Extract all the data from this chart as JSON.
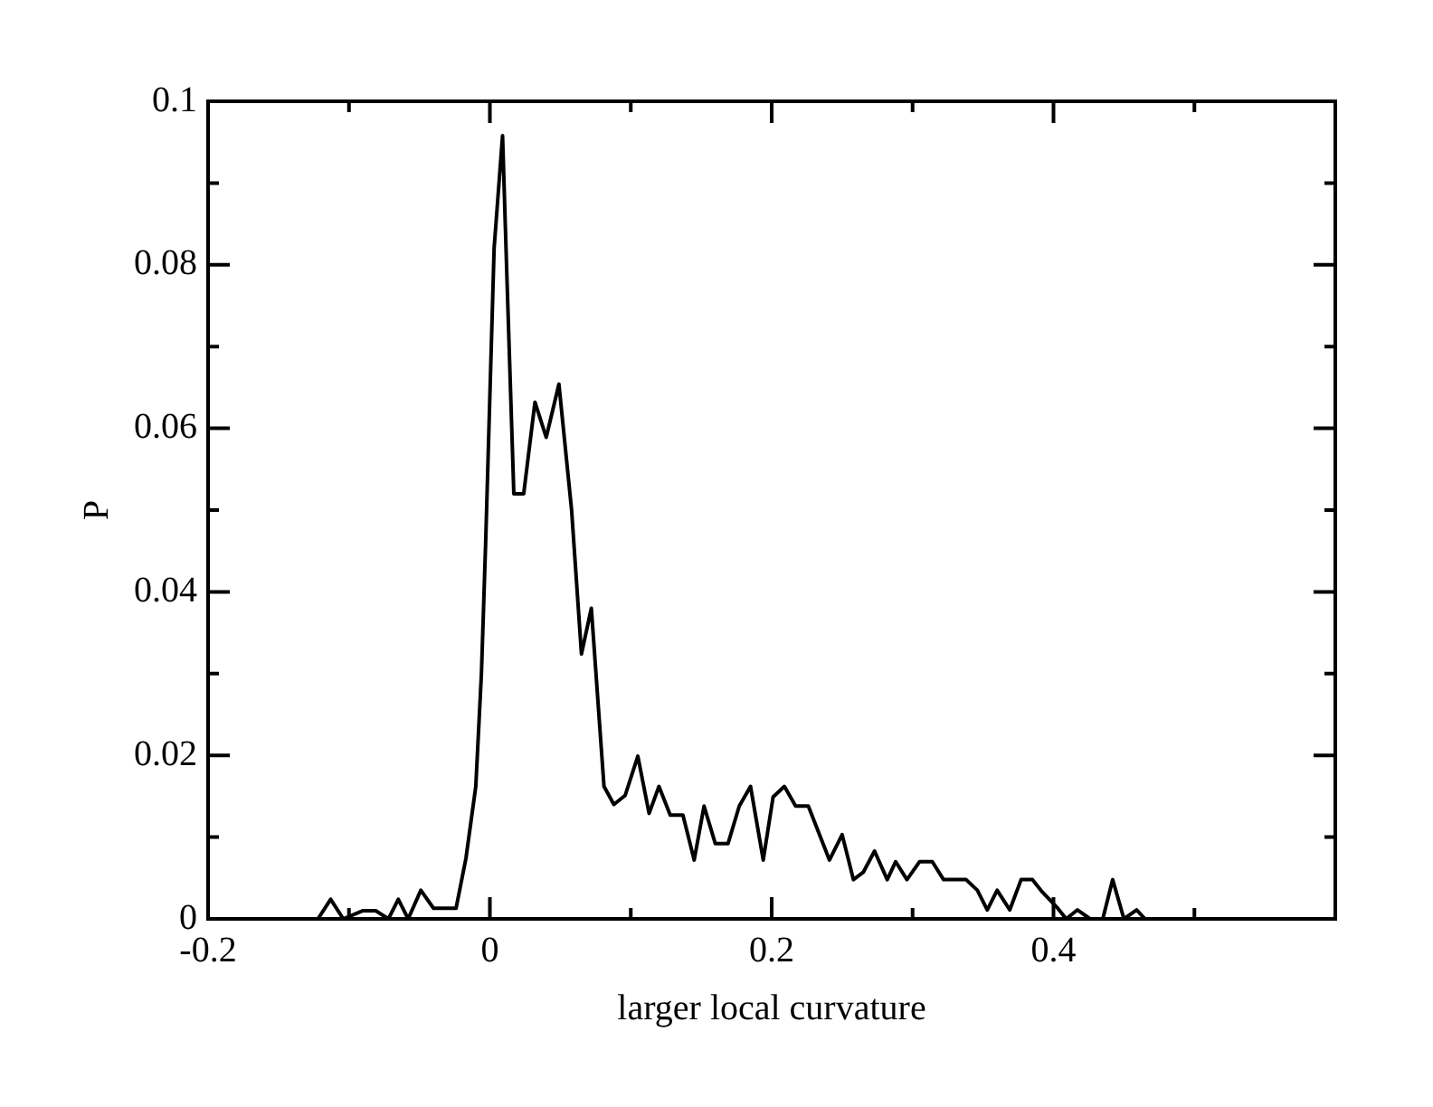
{
  "chart_data": {
    "type": "line",
    "xlabel": "larger local curvature",
    "ylabel": "P",
    "x": [
      -0.122,
      -0.113,
      -0.104,
      -0.09,
      -0.081,
      -0.072,
      -0.065,
      -0.058,
      -0.049,
      -0.04,
      -0.024,
      -0.017,
      -0.01,
      -0.006,
      -0.003,
      0.003,
      0.009,
      0.012,
      0.017,
      0.024,
      0.032,
      0.04,
      0.049,
      0.058,
      0.065,
      0.072,
      0.081,
      0.088,
      0.096,
      0.105,
      0.113,
      0.12,
      0.128,
      0.137,
      0.145,
      0.152,
      0.16,
      0.169,
      0.177,
      0.185,
      0.194,
      0.201,
      0.209,
      0.217,
      0.226,
      0.241,
      0.25,
      0.258,
      0.265,
      0.273,
      0.282,
      0.288,
      0.296,
      0.305,
      0.314,
      0.322,
      0.338,
      0.346,
      0.353,
      0.36,
      0.369,
      0.377,
      0.385,
      0.392,
      0.403,
      0.409,
      0.417,
      0.426,
      0.435,
      0.442,
      0.45,
      0.459,
      0.465
    ],
    "series": [
      {
        "color": "#000000",
        "values": [
          0,
          0.0024,
          0,
          0.001,
          0.001,
          0,
          0.0024,
          0,
          0.0035,
          0.0013,
          0.0013,
          0.0074,
          0.0162,
          0.03,
          0.046,
          0.082,
          0.0958,
          0.079,
          0.052,
          0.052,
          0.0632,
          0.0589,
          0.0654,
          0.05,
          0.0324,
          0.038,
          0.0162,
          0.014,
          0.0151,
          0.0199,
          0.0129,
          0.0162,
          0.0127,
          0.0127,
          0.0072,
          0.0138,
          0.0092,
          0.0092,
          0.0138,
          0.0162,
          0.0072,
          0.0149,
          0.0162,
          0.0138,
          0.0138,
          0.0072,
          0.0103,
          0.0048,
          0.0057,
          0.0083,
          0.0048,
          0.007,
          0.0048,
          0.007,
          0.007,
          0.0048,
          0.0048,
          0.0035,
          0.0011,
          0.0035,
          0.0011,
          0.0048,
          0.0048,
          0.0033,
          0.0013,
          0,
          0.0011,
          0,
          0,
          0.0048,
          0,
          0.0011,
          0
        ]
      }
    ],
    "xlim": [
      -0.2,
      0.6
    ],
    "xticks": [
      -0.2,
      {
        "value": -0.1,
        "label": null
      },
      0,
      {
        "value": 0.1,
        "label": null
      },
      0.2,
      {
        "value": 0.3,
        "label": null
      },
      0.4,
      {
        "value": 0.5,
        "label": null
      },
      {
        "value": 0.6,
        "label": null
      }
    ],
    "ylim": [
      0,
      0.1
    ],
    "yticks": [
      0,
      {
        "value": 0.01,
        "label": null
      },
      0.02,
      {
        "value": 0.03,
        "label": null
      },
      0.04,
      {
        "value": 0.05,
        "label": null
      },
      0.06,
      {
        "value": 0.07,
        "label": null
      },
      0.08,
      {
        "value": 0.09,
        "label": null
      },
      0.1
    ],
    "grid": false,
    "legend": false,
    "marker": "none",
    "line_style": "solid"
  }
}
